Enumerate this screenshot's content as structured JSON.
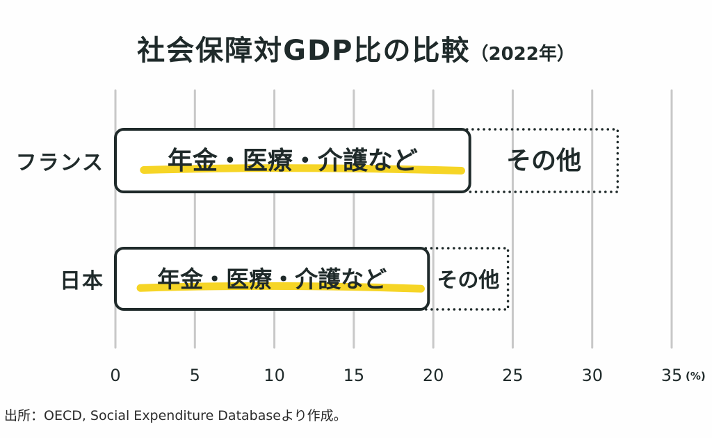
{
  "title": "社会保障対GDP比の比較",
  "title_suffix": "（2022年）",
  "source": "出所：OECD, Social Expenditure Databaseより作成。",
  "colors": {
    "ink": "#1f2a2a",
    "highlight": "#f5d31a",
    "grid": "#c8c8c8",
    "background": "#fefefe"
  },
  "chart_data": {
    "type": "bar",
    "orientation": "horizontal",
    "stacked": true,
    "categories": [
      "フランス",
      "日本"
    ],
    "series": [
      {
        "name": "年金・医療・介護など",
        "values": [
          22.3,
          19.7
        ],
        "style": "solid"
      },
      {
        "name": "その他",
        "values": [
          9.3,
          5.0
        ],
        "style": "dotted"
      }
    ],
    "xticks": [
      "0",
      "5",
      "10",
      "15",
      "20",
      "25",
      "30",
      "35"
    ],
    "xunit": "(%)",
    "xlim": [
      0,
      35
    ],
    "grid": true
  }
}
